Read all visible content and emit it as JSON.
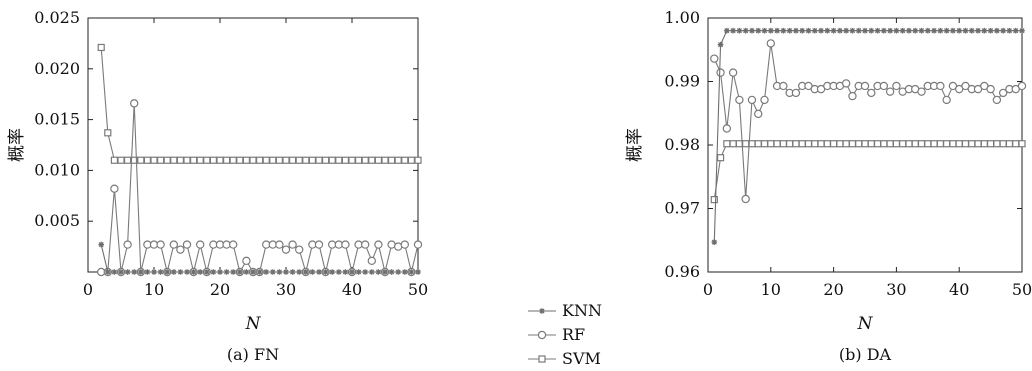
{
  "legend": [
    {
      "name": "KNN",
      "marker": "star",
      "color": "#6e6e6e"
    },
    {
      "name": "RF",
      "marker": "circle",
      "color": "#7a7a7a"
    },
    {
      "name": "SVM",
      "marker": "square",
      "color": "#7a7a7a"
    }
  ],
  "chart_data": [
    {
      "type": "line",
      "caption": "(a) FN",
      "title": "",
      "xlabel": "N",
      "ylabel": "概率",
      "xlim": [
        0,
        50
      ],
      "ylim": [
        0,
        0.025
      ],
      "xticks": [
        0,
        10,
        20,
        30,
        40,
        50
      ],
      "xtick_labels": [
        "0",
        "10",
        "20",
        "30",
        "40",
        "50"
      ],
      "yticks": [
        0.005,
        0.01,
        0.015,
        0.02,
        0.025
      ],
      "ytick_labels": [
        "0.005",
        "0.010",
        "0.015",
        "0.020",
        "0.025"
      ],
      "x": [
        2,
        3,
        4,
        5,
        6,
        7,
        8,
        9,
        10,
        11,
        12,
        13,
        14,
        15,
        16,
        17,
        18,
        19,
        20,
        21,
        22,
        23,
        24,
        25,
        26,
        27,
        28,
        29,
        30,
        31,
        32,
        33,
        34,
        35,
        36,
        37,
        38,
        39,
        40,
        41,
        42,
        43,
        44,
        45,
        46,
        47,
        48,
        49,
        50
      ],
      "series": [
        {
          "name": "KNN",
          "values": [
            0.0027,
            0,
            0,
            0,
            0,
            0,
            0,
            0,
            0,
            0,
            0,
            0,
            0,
            0,
            0,
            0,
            0,
            0,
            0,
            0,
            0,
            0,
            0,
            0,
            0,
            0,
            0,
            0,
            0,
            0,
            0,
            0,
            0,
            0,
            0,
            0,
            0,
            0,
            0,
            0,
            0,
            0,
            0,
            0,
            0,
            0,
            0,
            0,
            0
          ]
        },
        {
          "name": "RF",
          "values": [
            0,
            0,
            0.0082,
            0,
            0.0027,
            0.0166,
            0,
            0.0027,
            0.0027,
            0.0027,
            0,
            0.0027,
            0.0022,
            0.0027,
            0,
            0.0027,
            0,
            0.0027,
            0.0027,
            0.0027,
            0.0027,
            0,
            0.0011,
            0,
            0,
            0.0027,
            0.0027,
            0.0027,
            0.0022,
            0.0027,
            0.0022,
            0,
            0.0027,
            0.0027,
            0,
            0.0027,
            0.0027,
            0.0027,
            0,
            0.0027,
            0.0027,
            0.0011,
            0.0027,
            0,
            0.0027,
            0.0025,
            0.0027,
            0,
            0.0027
          ]
        },
        {
          "name": "SVM",
          "values": [
            0.0221,
            0.0137,
            0.011,
            0.011,
            0.011,
            0.011,
            0.011,
            0.011,
            0.011,
            0.011,
            0.011,
            0.011,
            0.011,
            0.011,
            0.011,
            0.011,
            0.011,
            0.011,
            0.011,
            0.011,
            0.011,
            0.011,
            0.011,
            0.011,
            0.011,
            0.011,
            0.011,
            0.011,
            0.011,
            0.011,
            0.011,
            0.011,
            0.011,
            0.011,
            0.011,
            0.011,
            0.011,
            0.011,
            0.011,
            0.011,
            0.011,
            0.011,
            0.011,
            0.011,
            0.011,
            0.011,
            0.011,
            0.011,
            0.011
          ]
        }
      ]
    },
    {
      "type": "line",
      "caption": "(b) DA",
      "title": "",
      "xlabel": "N",
      "ylabel": "概率",
      "xlim": [
        0,
        50
      ],
      "ylim": [
        0.96,
        1.0
      ],
      "xticks": [
        0,
        10,
        20,
        30,
        40,
        50
      ],
      "xtick_labels": [
        "0",
        "10",
        "20",
        "30",
        "40",
        "50"
      ],
      "yticks": [
        0.96,
        0.97,
        0.98,
        0.99,
        1.0
      ],
      "ytick_labels": [
        "0.96",
        "0.97",
        "0.98",
        "0.99",
        "1.00"
      ],
      "x": [
        1,
        2,
        3,
        4,
        5,
        6,
        7,
        8,
        9,
        10,
        11,
        12,
        13,
        14,
        15,
        16,
        17,
        18,
        19,
        20,
        21,
        22,
        23,
        24,
        25,
        26,
        27,
        28,
        29,
        30,
        31,
        32,
        33,
        34,
        35,
        36,
        37,
        38,
        39,
        40,
        41,
        42,
        43,
        44,
        45,
        46,
        47,
        48,
        49,
        50
      ],
      "series": [
        {
          "name": "KNN",
          "values": [
            0.9647,
            0.9958,
            0.998,
            0.998,
            0.998,
            0.998,
            0.998,
            0.998,
            0.998,
            0.998,
            0.998,
            0.998,
            0.998,
            0.998,
            0.998,
            0.998,
            0.998,
            0.998,
            0.998,
            0.998,
            0.998,
            0.998,
            0.998,
            0.998,
            0.998,
            0.998,
            0.998,
            0.998,
            0.998,
            0.998,
            0.998,
            0.998,
            0.998,
            0.998,
            0.998,
            0.998,
            0.998,
            0.998,
            0.998,
            0.998,
            0.998,
            0.998,
            0.998,
            0.998,
            0.998,
            0.998,
            0.998,
            0.998,
            0.998,
            0.998
          ]
        },
        {
          "name": "RF",
          "values": [
            0.9936,
            0.9914,
            0.9826,
            0.9914,
            0.9871,
            0.9715,
            0.9871,
            0.9849,
            0.9871,
            0.996,
            0.9893,
            0.9893,
            0.9882,
            0.9882,
            0.9893,
            0.9893,
            0.9888,
            0.9888,
            0.9893,
            0.9893,
            0.9893,
            0.9897,
            0.9877,
            0.9893,
            0.9893,
            0.9882,
            0.9893,
            0.9893,
            0.9884,
            0.9893,
            0.9884,
            0.9888,
            0.9888,
            0.9884,
            0.9893,
            0.9893,
            0.9893,
            0.9871,
            0.9893,
            0.9888,
            0.9893,
            0.9888,
            0.9888,
            0.9893,
            0.9888,
            0.9871,
            0.9882,
            0.9888,
            0.9888,
            0.9893
          ]
        },
        {
          "name": "SVM",
          "values": [
            0.9714,
            0.978,
            0.9802,
            0.9802,
            0.9802,
            0.9802,
            0.9802,
            0.9802,
            0.9802,
            0.9802,
            0.9802,
            0.9802,
            0.9802,
            0.9802,
            0.9802,
            0.9802,
            0.9802,
            0.9802,
            0.9802,
            0.9802,
            0.9802,
            0.9802,
            0.9802,
            0.9802,
            0.9802,
            0.9802,
            0.9802,
            0.9802,
            0.9802,
            0.9802,
            0.9802,
            0.9802,
            0.9802,
            0.9802,
            0.9802,
            0.9802,
            0.9802,
            0.9802,
            0.9802,
            0.9802,
            0.9802,
            0.9802,
            0.9802,
            0.9802,
            0.9802,
            0.9802,
            0.9802,
            0.9802,
            0.9802,
            0.9802
          ]
        }
      ]
    }
  ]
}
